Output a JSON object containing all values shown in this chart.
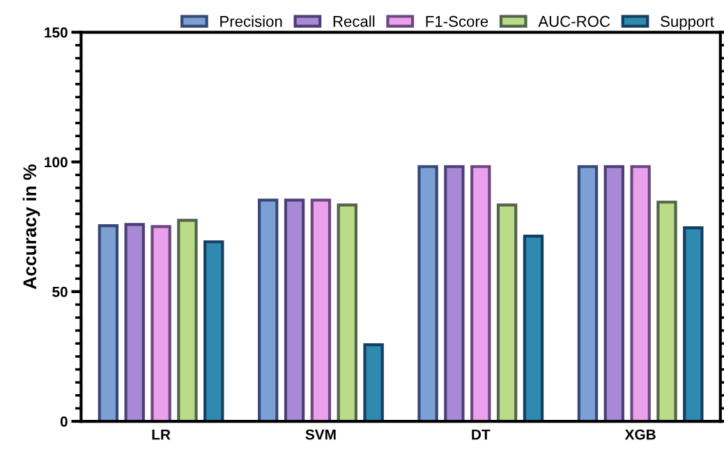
{
  "chart_data": {
    "type": "bar",
    "ylabel": "Accuracy in %",
    "categories": [
      "LR",
      "SVM",
      "DT",
      "XGB"
    ],
    "series": [
      {
        "name": "Precision",
        "color": "#7ba0d4",
        "values": [
          75.4,
          85.3,
          98.2,
          98.2
        ]
      },
      {
        "name": "Recall",
        "color": "#a889d6",
        "values": [
          75.9,
          85.3,
          98.2,
          98.2
        ]
      },
      {
        "name": "F1-Score",
        "color": "#eaa0ea",
        "values": [
          75.1,
          85.3,
          98.2,
          98.2
        ]
      },
      {
        "name": "AUC-ROC",
        "color": "#b8dc88",
        "values": [
          77.5,
          83.4,
          83.4,
          84.5
        ]
      },
      {
        "name": "Support",
        "color": "#2e8ab0",
        "values": [
          69.2,
          29.5,
          71.4,
          74.6
        ]
      }
    ],
    "ylim": [
      0,
      150
    ],
    "yticks": [
      0,
      50,
      100,
      150
    ],
    "grid": false,
    "legend": "top"
  }
}
